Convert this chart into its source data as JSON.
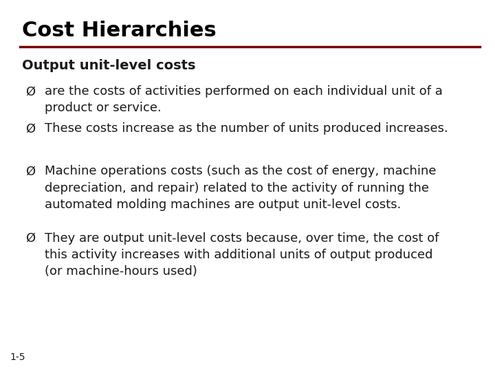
{
  "title": "Cost Hierarchies",
  "title_color": "#000000",
  "title_fontsize": 22,
  "title_bold": true,
  "line_color": "#7B0000",
  "subtitle": "Output unit-level costs",
  "subtitle_fontsize": 14,
  "subtitle_bold": true,
  "bullet_fontsize": 13,
  "bullets": [
    "are the costs of activities performed on each individual unit of a\nproduct or service.",
    "These costs increase as the number of units produced increases.",
    "Machine operations costs (such as the cost of energy, machine\ndepreciation, and repair) related to the activity of running the\nautomated molding machines are output unit-level costs.",
    "They are output unit-level costs because, over time, the cost of\nthis activity increases with additional units of output produced\n(or machine-hours used)"
  ],
  "footer": "1-5",
  "background_color": "#ffffff",
  "text_color": "#1a1a1a"
}
